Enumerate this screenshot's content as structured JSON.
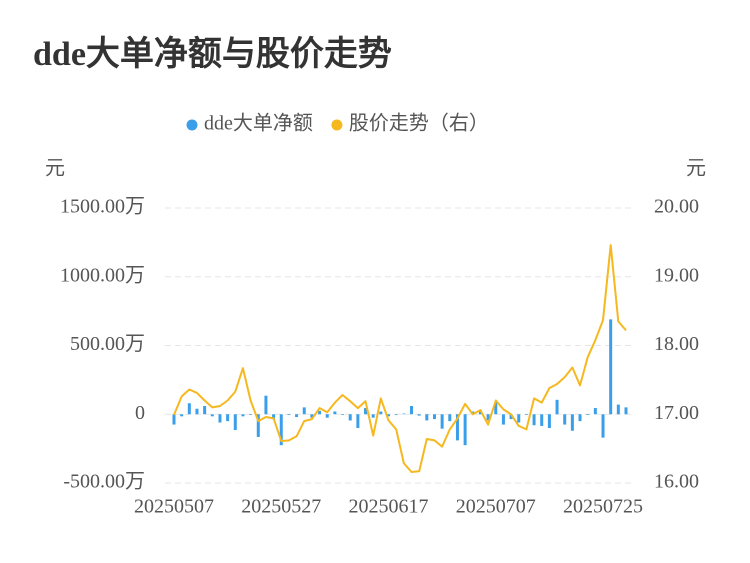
{
  "chart_data": {
    "type": "bar+line",
    "title": "dde大单净额与股价走势",
    "y_label": "元",
    "y2_label": "元",
    "categories": [
      "20250507",
      null,
      null,
      null,
      null,
      null,
      null,
      null,
      null,
      null,
      null,
      null,
      null,
      null,
      "20250527",
      null,
      null,
      null,
      null,
      null,
      null,
      null,
      null,
      null,
      null,
      null,
      null,
      null,
      "20250617",
      null,
      null,
      null,
      null,
      null,
      null,
      null,
      null,
      null,
      null,
      null,
      null,
      null,
      "20250707",
      null,
      null,
      null,
      null,
      null,
      null,
      null,
      null,
      null,
      null,
      null,
      null,
      null,
      "20250725",
      null,
      null,
      null
    ],
    "ylim": [
      -500,
      1500
    ],
    "yticks": [
      {
        "value": -500,
        "label": "-500.00万"
      },
      0,
      {
        "value": 500,
        "label": "500.00万"
      },
      {
        "value": 1000,
        "label": "1000.00万"
      },
      {
        "value": 1500,
        "label": "1500.00万"
      }
    ],
    "y2lim": [
      16,
      20
    ],
    "y2ticks": [
      {
        "value": 16,
        "label": "16.00"
      },
      {
        "value": 17,
        "label": "17.00"
      },
      {
        "value": 18,
        "label": "18.00"
      },
      {
        "value": 19,
        "label": "19.00"
      },
      {
        "value": 20,
        "label": "20.00"
      }
    ],
    "grid": true,
    "series": [
      {
        "name": "dde大单净额",
        "type": "bar",
        "color": "#3a9fe8",
        "values": [
          -75,
          -15,
          80,
          40,
          60,
          -15,
          -60,
          -50,
          -115,
          -15,
          -5,
          -165,
          135,
          -35,
          -225,
          -5,
          -20,
          50,
          -25,
          25,
          -25,
          20,
          -5,
          -45,
          -100,
          45,
          -25,
          20,
          -15,
          -5,
          5,
          60,
          -10,
          -45,
          -35,
          -105,
          -50,
          -190,
          -225,
          20,
          30,
          -45,
          85,
          -75,
          -35,
          -60,
          -5,
          -80,
          -85,
          -100,
          105,
          -75,
          -120,
          -50,
          -5,
          45,
          -170,
          690,
          70,
          50
        ]
      },
      {
        "name": "股价走势（右）",
        "type": "line",
        "axis": "y2",
        "color": "#f5b81f",
        "values": [
          16.99,
          17.26,
          17.36,
          17.31,
          17.2,
          17.1,
          17.12,
          17.2,
          17.33,
          17.67,
          17.2,
          16.9,
          16.96,
          16.94,
          16.61,
          16.62,
          16.68,
          16.9,
          16.93,
          17.09,
          17.03,
          17.17,
          17.28,
          17.19,
          17.09,
          17.19,
          16.69,
          17.23,
          16.91,
          16.78,
          16.29,
          16.16,
          16.17,
          16.64,
          16.62,
          16.53,
          16.78,
          16.94,
          17.15,
          17.0,
          17.06,
          16.85,
          17.2,
          17.07,
          17.0,
          16.83,
          16.78,
          17.23,
          17.17,
          17.38,
          17.44,
          17.54,
          17.68,
          17.42,
          17.83,
          18.08,
          18.37,
          19.46,
          18.35,
          18.22
        ]
      }
    ]
  }
}
